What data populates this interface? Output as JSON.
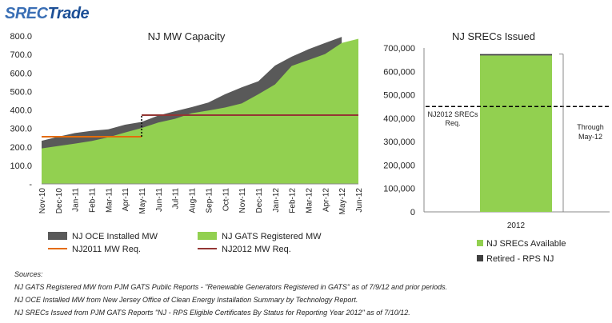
{
  "logo": {
    "text_a": "SREC",
    "text_b": "Trade"
  },
  "chart_data": [
    {
      "type": "area",
      "title": "NJ MW Capacity",
      "categories": [
        "Nov-10",
        "Dec-10",
        "Jan-11",
        "Feb-11",
        "Mar-11",
        "Apr-11",
        "May-11",
        "Jun-11",
        "Jul-11",
        "Aug-11",
        "Sep-11",
        "Oct-11",
        "Nov-11",
        "Dec-11",
        "Jan-12",
        "Feb-12",
        "Mar-12",
        "Apr-12",
        "May-12",
        "Jun-12"
      ],
      "ylim": [
        0,
        800
      ],
      "yticks": [
        "-",
        "100.0",
        "200.0",
        "300.0",
        "400.0",
        "500.0",
        "600.0",
        "700.0",
        "800.0"
      ],
      "series": [
        {
          "name": "NJ OCE Installed MW",
          "color": "#595959",
          "values": [
            233,
            255,
            275,
            287,
            295,
            320,
            335,
            370,
            393,
            415,
            440,
            485,
            522,
            555,
            640,
            688,
            728,
            762,
            795,
            null
          ]
        },
        {
          "name": "NJ GATS Registered MW",
          "color": "#92d050",
          "values": [
            192,
            205,
            218,
            232,
            252,
            278,
            302,
            332,
            352,
            382,
            397,
            413,
            435,
            485,
            538,
            638,
            670,
            702,
            762,
            785
          ]
        },
        {
          "name": "NJ2011 MW Req.",
          "color": "#e46c0a",
          "type": "step",
          "values": [
            255,
            255,
            255,
            255,
            255,
            255,
            255,
            null,
            null,
            null,
            null,
            null,
            null,
            null,
            null,
            null,
            null,
            null,
            null,
            null
          ]
        },
        {
          "name": "NJ2012 MW Req.",
          "color": "#943634",
          "type": "step",
          "values": [
            null,
            null,
            null,
            null,
            null,
            null,
            372,
            372,
            372,
            372,
            372,
            372,
            372,
            372,
            372,
            372,
            372,
            372,
            372,
            372
          ]
        }
      ]
    },
    {
      "type": "bar",
      "title": "NJ SRECs Issued",
      "categories": [
        "2012"
      ],
      "ylim": [
        0,
        700000
      ],
      "yticks": [
        "0",
        "100,000",
        "200,000",
        "300,000",
        "400,000",
        "500,000",
        "600,000",
        "700,000"
      ],
      "series": [
        {
          "name": "NJ SRECs Available",
          "color": "#92d050",
          "values": [
            668000
          ]
        },
        {
          "name": "Retired - RPS NJ",
          "color": "#404040",
          "values": [
            6000
          ]
        }
      ],
      "reference_line": {
        "value": 450000,
        "label": "NJ2012 SRECs Req."
      },
      "bracket": {
        "from": 0,
        "to": 674000,
        "label": "Through May-12"
      }
    }
  ],
  "sources": {
    "heading": "Sources:",
    "lines": [
      "NJ GATS Registered MW from PJM GATS Public Reports - \"Renewable Generators Registered in GATS\" as of 7/9/12 and prior periods.",
      "NJ OCE Installed MW from New Jersey Office of Clean Energy Installation Summary by Technology Report.",
      "NJ SRECs Issued from PJM GATS Reports \"NJ - RPS Eligible Certificates By Status for Reporting Year 2012\" as of 7/10/12."
    ]
  }
}
